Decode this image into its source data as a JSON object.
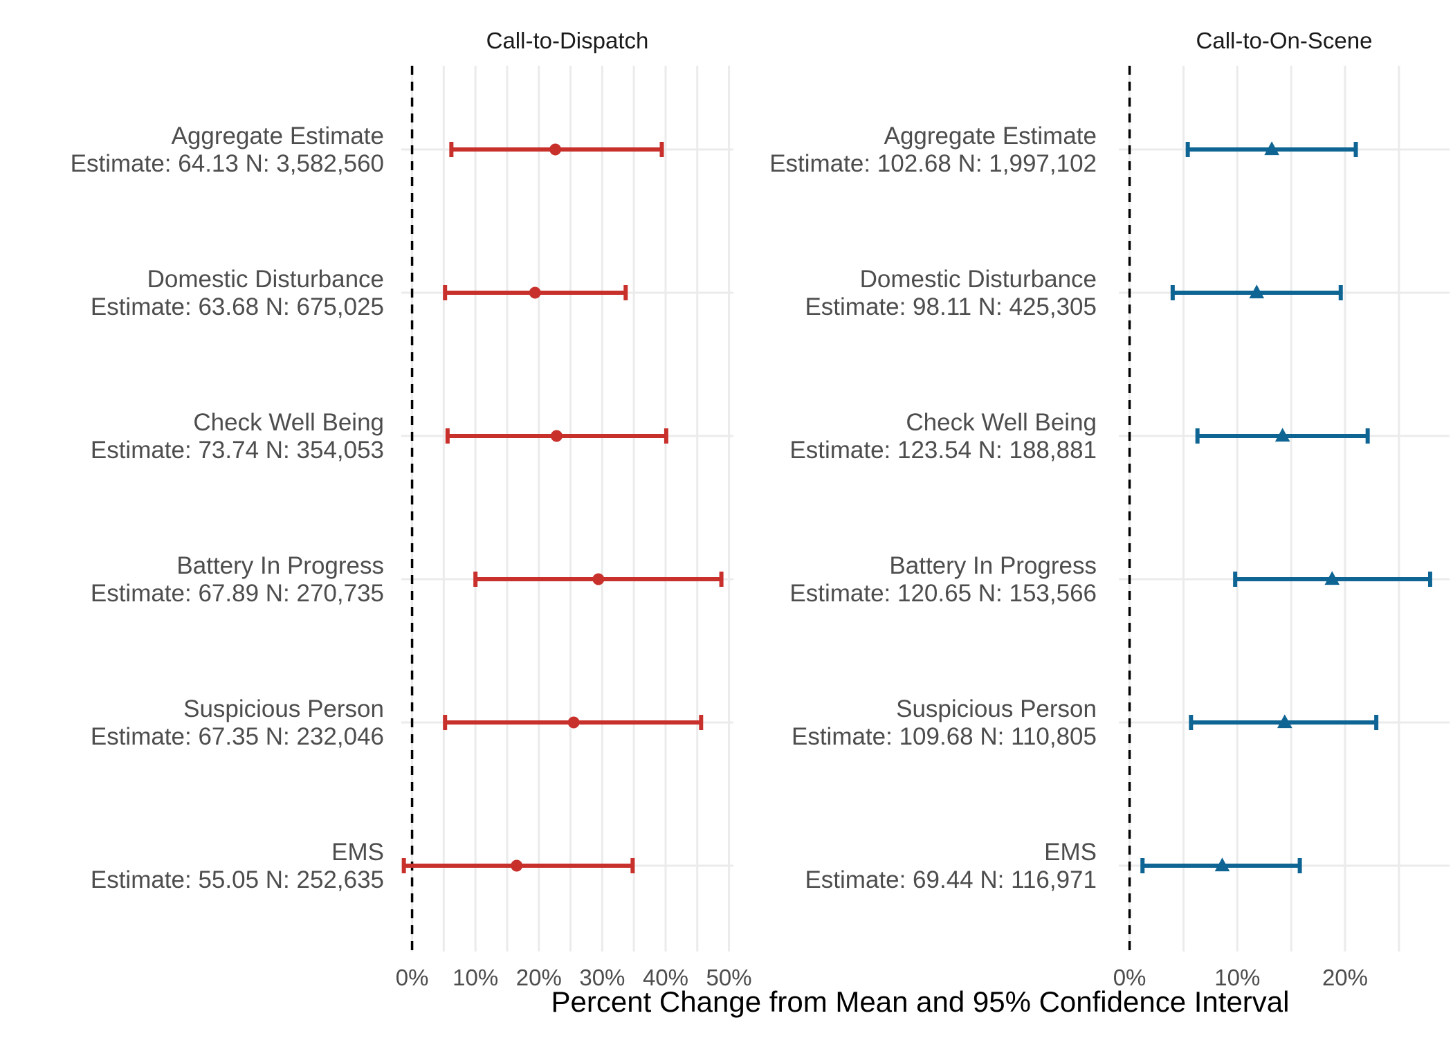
{
  "chart_data": {
    "type": "forest-plot",
    "xlabel": "Percent Change from Mean and 95% Confidence Interval",
    "panels": [
      {
        "title": "Call-to-Dispatch",
        "color": "#c8302c",
        "marker": "circle",
        "xlim": [
          -0.017,
          0.507
        ],
        "ticks": [
          0,
          0.1,
          0.2,
          0.3,
          0.4,
          0.5
        ],
        "tick_labels": [
          "0%",
          "10%",
          "20%",
          "30%",
          "40%",
          "50%"
        ],
        "rows": [
          {
            "name": "Aggregate Estimate",
            "stats": "Estimate: 64.13 N: 3,582,560",
            "estimate": 0.226,
            "lower": 0.062,
            "upper": 0.394
          },
          {
            "name": "Domestic Disturbance",
            "stats": "Estimate: 63.68 N: 675,025",
            "estimate": 0.194,
            "lower": 0.052,
            "upper": 0.337
          },
          {
            "name": "Check Well Being",
            "stats": "Estimate: 73.74 N: 354,053",
            "estimate": 0.228,
            "lower": 0.056,
            "upper": 0.401
          },
          {
            "name": "Battery In Progress",
            "stats": "Estimate: 67.89 N: 270,735",
            "estimate": 0.294,
            "lower": 0.1,
            "upper": 0.488
          },
          {
            "name": "Suspicious Person",
            "stats": "Estimate: 67.35 N: 232,046",
            "estimate": 0.255,
            "lower": 0.052,
            "upper": 0.456
          },
          {
            "name": "EMS",
            "stats": "Estimate: 55.05 N: 252,635",
            "estimate": 0.165,
            "lower": -0.013,
            "upper": 0.348
          }
        ]
      },
      {
        "title": "Call-to-On-Scene",
        "color": "#0e6594",
        "marker": "triangle",
        "xlim": [
          -0.01,
          0.297
        ],
        "ticks": [
          0,
          0.1,
          0.2
        ],
        "tick_labels": [
          "0%",
          "10%",
          "20%"
        ],
        "rows": [
          {
            "name": "Aggregate Estimate",
            "stats": "Estimate: 102.68 N: 1,997,102",
            "estimate": 0.132,
            "lower": 0.054,
            "upper": 0.21
          },
          {
            "name": "Domestic Disturbance",
            "stats": "Estimate: 98.11 N: 425,305",
            "estimate": 0.118,
            "lower": 0.04,
            "upper": 0.196
          },
          {
            "name": "Check Well Being",
            "stats": "Estimate: 123.54 N: 188,881",
            "estimate": 0.142,
            "lower": 0.063,
            "upper": 0.221
          },
          {
            "name": "Battery In Progress",
            "stats": "Estimate: 120.65 N: 153,566",
            "estimate": 0.188,
            "lower": 0.098,
            "upper": 0.279
          },
          {
            "name": "Suspicious Person",
            "stats": "Estimate: 109.68 N: 110,805",
            "estimate": 0.144,
            "lower": 0.057,
            "upper": 0.229
          },
          {
            "name": "EMS",
            "stats": "Estimate: 69.44 N: 116,971",
            "estimate": 0.086,
            "lower": 0.012,
            "upper": 0.158
          }
        ]
      }
    ],
    "grid": true,
    "legend": "none"
  }
}
